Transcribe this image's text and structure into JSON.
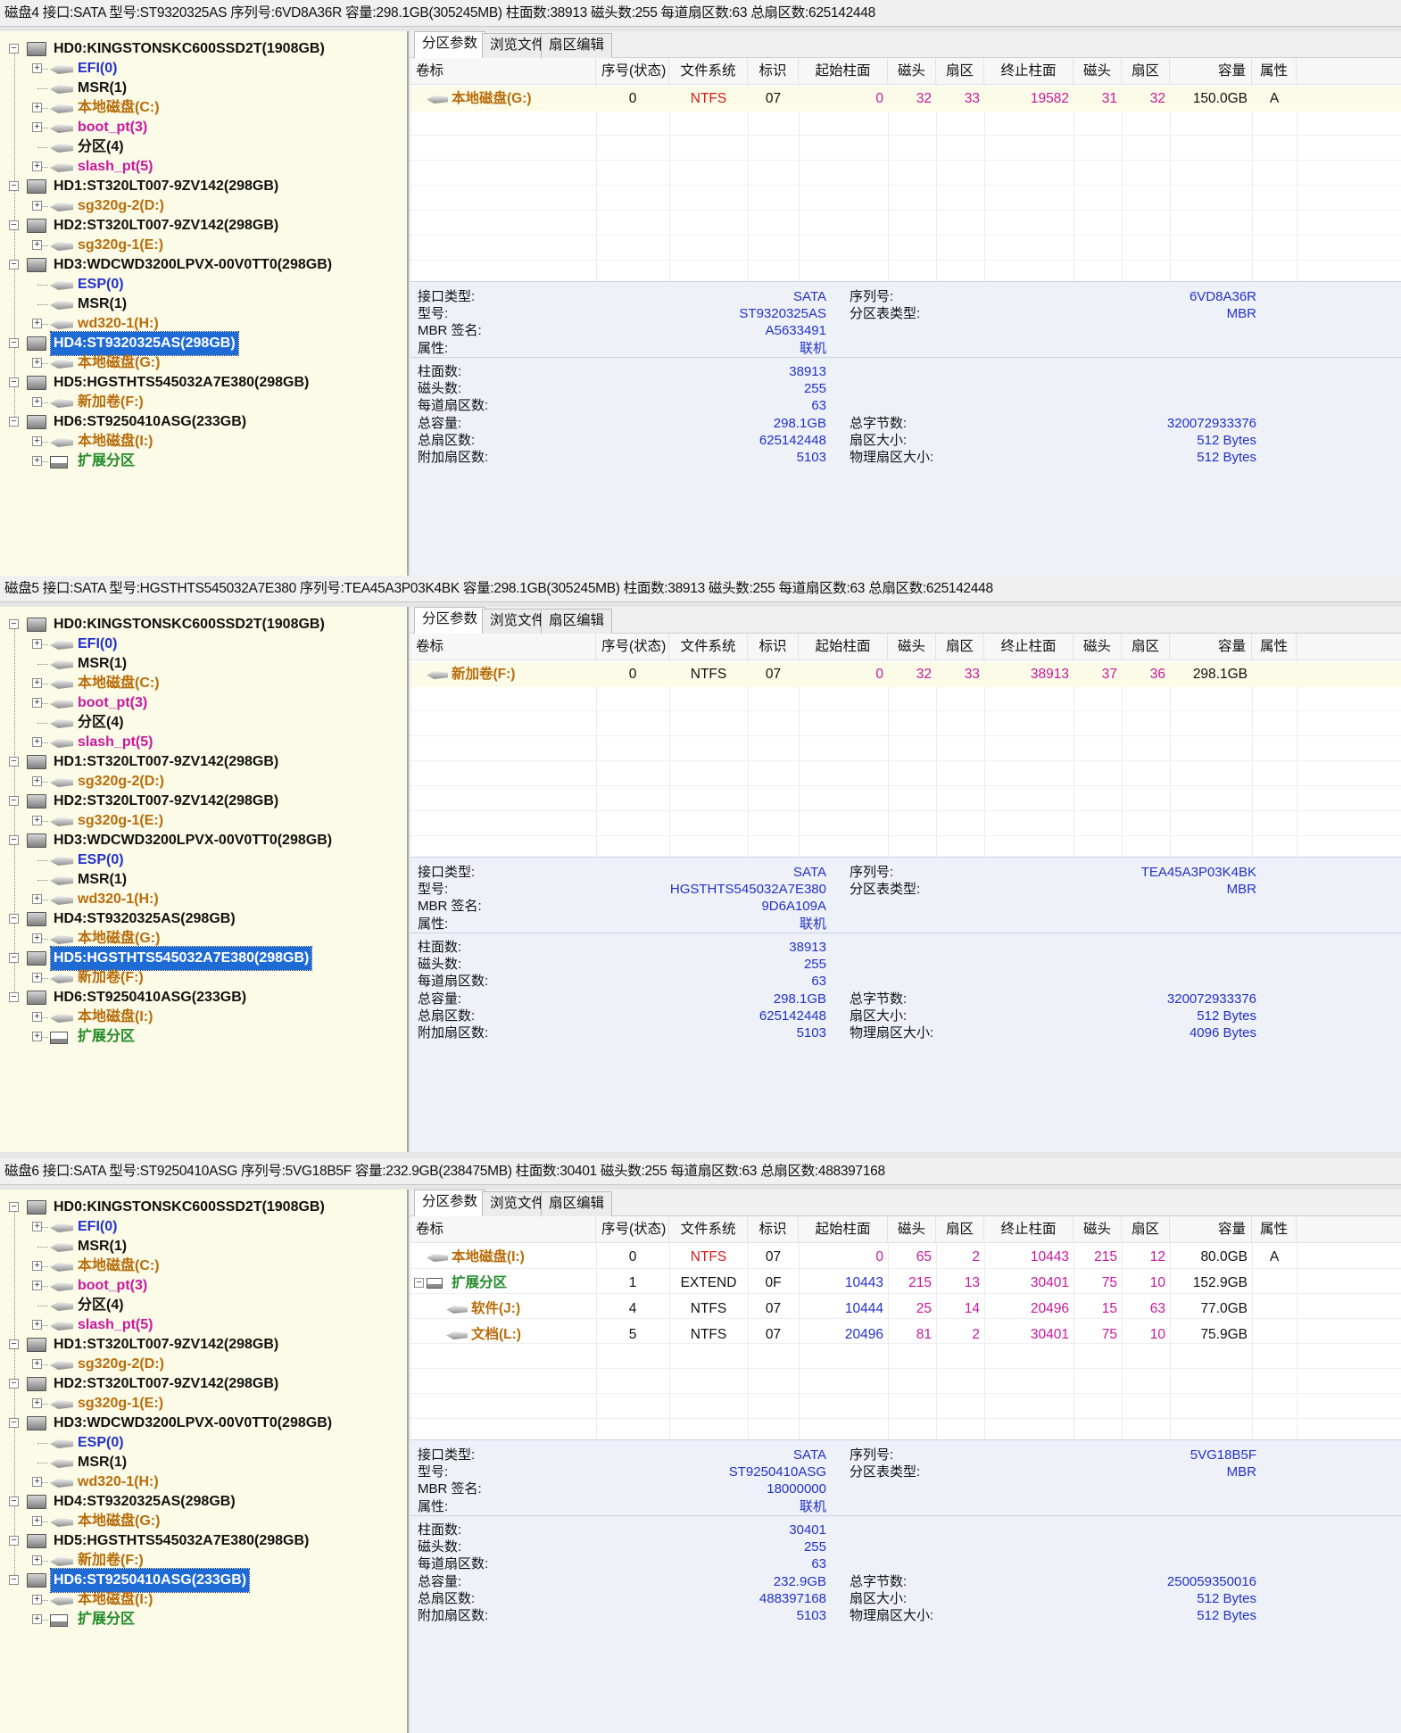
{
  "colors": {
    "tree_bg": "#fbfbe7",
    "selected": "#1f6bd6",
    "blue": "#2231c9",
    "magenta": "#c9179e",
    "red": "#d81b1b",
    "brown": "#b86c0a",
    "green": "#1f8a26",
    "black": "#111111"
  },
  "tree": [
    {
      "kind": "disk",
      "text": "HD0:KINGSTONSKC600SSD2T(1908GB)",
      "level": 0,
      "expand": "-",
      "color": "black"
    },
    {
      "kind": "part",
      "text": "EFI(0)",
      "level": 1,
      "expand": "+",
      "color": "blue"
    },
    {
      "kind": "part",
      "text": "MSR(1)",
      "level": 1,
      "expand": "",
      "color": "black"
    },
    {
      "kind": "part",
      "text": "本地磁盘(C:)",
      "level": 1,
      "expand": "+",
      "color": "brown"
    },
    {
      "kind": "part",
      "text": "boot_pt(3)",
      "level": 1,
      "expand": "+",
      "color": "magenta"
    },
    {
      "kind": "part",
      "text": "分区(4)",
      "level": 1,
      "expand": "",
      "color": "black"
    },
    {
      "kind": "part",
      "text": "slash_pt(5)",
      "level": 1,
      "expand": "+",
      "color": "magenta"
    },
    {
      "kind": "disk",
      "text": "HD1:ST320LT007-9ZV142(298GB)",
      "level": 0,
      "expand": "-",
      "color": "black"
    },
    {
      "kind": "part",
      "text": "sg320g-2(D:)",
      "level": 1,
      "expand": "+",
      "color": "brown"
    },
    {
      "kind": "disk",
      "text": "HD2:ST320LT007-9ZV142(298GB)",
      "level": 0,
      "expand": "-",
      "color": "black"
    },
    {
      "kind": "part",
      "text": "sg320g-1(E:)",
      "level": 1,
      "expand": "+",
      "color": "brown"
    },
    {
      "kind": "disk",
      "text": "HD3:WDCWD3200LPVX-00V0TT0(298GB)",
      "level": 0,
      "expand": "-",
      "color": "black"
    },
    {
      "kind": "part",
      "text": "ESP(0)",
      "level": 1,
      "expand": "",
      "color": "blue"
    },
    {
      "kind": "part",
      "text": "MSR(1)",
      "level": 1,
      "expand": "",
      "color": "black"
    },
    {
      "kind": "part",
      "text": "wd320-1(H:)",
      "level": 1,
      "expand": "+",
      "color": "brown"
    },
    {
      "kind": "disk",
      "text": "HD4:ST9320325AS(298GB)",
      "level": 0,
      "expand": "-",
      "color": "black"
    },
    {
      "kind": "part",
      "text": "本地磁盘(G:)",
      "level": 1,
      "expand": "+",
      "color": "brown"
    },
    {
      "kind": "disk",
      "text": "HD5:HGSTHTS545032A7E380(298GB)",
      "level": 0,
      "expand": "-",
      "color": "black"
    },
    {
      "kind": "part",
      "text": "新加卷(F:)",
      "level": 1,
      "expand": "+",
      "color": "brown"
    },
    {
      "kind": "disk",
      "text": "HD6:ST9250410ASG(233GB)",
      "level": 0,
      "expand": "-",
      "color": "black"
    },
    {
      "kind": "part",
      "text": "本地磁盘(I:)",
      "level": 1,
      "expand": "+",
      "color": "brown"
    },
    {
      "kind": "ext",
      "text": "扩展分区",
      "level": 1,
      "expand": "+",
      "color": "green"
    }
  ],
  "tabs": [
    "分区参数",
    "浏览文件",
    "扇区编辑"
  ],
  "columns": [
    "卷标",
    "序号(状态)",
    "文件系统",
    "标识",
    "起始柱面",
    "磁头",
    "扇区",
    "终止柱面",
    "磁头",
    "扇区",
    "容量",
    "属性"
  ],
  "info_labels": {
    "iface": "接口类型:",
    "model": "型号:",
    "mbr": "MBR 签名:",
    "attr": "属性:",
    "serial": "序列号:",
    "pttype": "分区表类型:",
    "cyl": "柱面数:",
    "heads": "磁头数:",
    "spt": "每道扇区数:",
    "total": "总容量:",
    "sectors": "总扇区数:",
    "extra": "附加扇区数:",
    "bytes": "总字节数:",
    "ssize": "扇区大小:",
    "psize": "物理扇区大小:"
  },
  "panels": [
    {
      "infobar": "磁盘4 接口:SATA  型号:ST9320325AS  序列号:6VD8A36R  容量:298.1GB(305245MB)  柱面数:38913  磁头数:255  每道扇区数:63  总扇区数:625142448",
      "selected_index": 15,
      "rows": [
        {
          "indent": 0,
          "expand": "",
          "name": "本地磁盘(G:)",
          "name_color": "brown",
          "seq": "0",
          "fs": "NTFS",
          "fs_color": "red",
          "id": "07",
          "sc": "0",
          "sh": "32",
          "ss": "33",
          "ec": "19582",
          "eh": "31",
          "es": "32",
          "cap": "150.0GB",
          "attr": "A",
          "selected": true
        }
      ],
      "info": {
        "iface": "SATA",
        "model": "ST9320325AS",
        "mbr": "A5633491",
        "attr": "联机",
        "serial": "6VD8A36R",
        "pttype": "MBR",
        "cyl": "38913",
        "heads": "255",
        "spt": "63",
        "total": "298.1GB",
        "sectors": "625142448",
        "extra": "5103",
        "bytes": "320072933376",
        "ssize": "512 Bytes",
        "psize": "512 Bytes"
      }
    },
    {
      "infobar": "磁盘5 接口:SATA  型号:HGSTHTS545032A7E380  序列号:TEA45A3P03K4BK  容量:298.1GB(305245MB)  柱面数:38913  磁头数:255  每道扇区数:63  总扇区数:625142448",
      "selected_index": 17,
      "rows": [
        {
          "indent": 0,
          "expand": "",
          "name": "新加卷(F:)",
          "name_color": "brown",
          "seq": "0",
          "fs": "NTFS",
          "fs_color": "black",
          "id": "07",
          "sc": "0",
          "sh": "32",
          "ss": "33",
          "ec": "38913",
          "eh": "37",
          "es": "36",
          "cap": "298.1GB",
          "attr": "",
          "selected": true
        }
      ],
      "info": {
        "iface": "SATA",
        "model": "HGSTHTS545032A7E380",
        "mbr": "9D6A109A",
        "attr": "联机",
        "serial": "TEA45A3P03K4BK",
        "pttype": "MBR",
        "cyl": "38913",
        "heads": "255",
        "spt": "63",
        "total": "298.1GB",
        "sectors": "625142448",
        "extra": "5103",
        "bytes": "320072933376",
        "ssize": "512 Bytes",
        "psize": "4096 Bytes"
      }
    },
    {
      "infobar": "磁盘6 接口:SATA  型号:ST9250410ASG  序列号:5VG18B5F  容量:232.9GB(238475MB)  柱面数:30401  磁头数:255  每道扇区数:63  总扇区数:488397168",
      "selected_index": 19,
      "rows": [
        {
          "indent": 0,
          "expand": "",
          "name": "本地磁盘(I:)",
          "name_color": "brown",
          "seq": "0",
          "fs": "NTFS",
          "fs_color": "red",
          "id": "07",
          "sc": "0",
          "sh": "65",
          "ss": "2",
          "ec": "10443",
          "eh": "215",
          "es": "12",
          "cap": "80.0GB",
          "attr": "A",
          "selected": false
        },
        {
          "indent": 0,
          "expand": "-",
          "name": "扩展分区",
          "name_color": "green",
          "ext": true,
          "seq": "1",
          "fs": "EXTEND",
          "fs_color": "black",
          "id": "0F",
          "sc": "10443",
          "sh": "215",
          "ss": "13",
          "ec": "30401",
          "eh": "75",
          "es": "10",
          "cap": "152.9GB",
          "attr": "",
          "selected": false
        },
        {
          "indent": 1,
          "expand": "",
          "name": "软件(J:)",
          "name_color": "brown",
          "seq": "4",
          "fs": "NTFS",
          "fs_color": "black",
          "id": "07",
          "sc": "10444",
          "sh": "25",
          "ss": "14",
          "ec": "20496",
          "eh": "15",
          "es": "63",
          "cap": "77.0GB",
          "attr": "",
          "selected": false
        },
        {
          "indent": 1,
          "expand": "",
          "name": "文档(L:)",
          "name_color": "brown",
          "seq": "5",
          "fs": "NTFS",
          "fs_color": "black",
          "id": "07",
          "sc": "20496",
          "sh": "81",
          "ss": "2",
          "ec": "30401",
          "eh": "75",
          "es": "10",
          "cap": "75.9GB",
          "attr": "",
          "selected": false
        }
      ],
      "info": {
        "iface": "SATA",
        "model": "ST9250410ASG",
        "mbr": "18000000",
        "attr": "联机",
        "serial": "5VG18B5F",
        "pttype": "MBR",
        "cyl": "30401",
        "heads": "255",
        "spt": "63",
        "total": "232.9GB",
        "sectors": "488397168",
        "extra": "5103",
        "bytes": "250059350016",
        "ssize": "512 Bytes",
        "psize": "512 Bytes"
      }
    }
  ]
}
